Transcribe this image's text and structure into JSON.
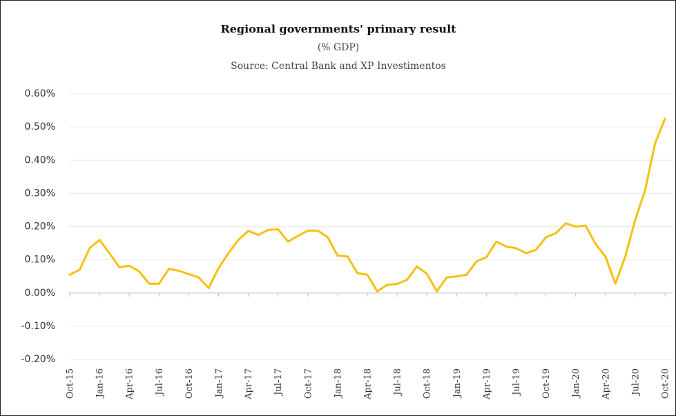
{
  "chart_data": {
    "type": "line",
    "title": "Regional governments' primary result",
    "subtitle": "(% GDP)",
    "source": "Source: Central Bank and XP Investimentos",
    "categories": [
      "Oct-15",
      null,
      null,
      "Jan-16",
      null,
      null,
      "Apr-16",
      null,
      null,
      "Jul-16",
      null,
      null,
      "Oct-16",
      null,
      null,
      "Jan-17",
      null,
      null,
      "Apr-17",
      null,
      null,
      "Jul-17",
      null,
      null,
      "Oct-17",
      null,
      null,
      "Jan-18",
      null,
      null,
      "Apr-18",
      null,
      null,
      "Jul-18",
      null,
      null,
      "Oct-18",
      null,
      null,
      "Jan-19",
      null,
      null,
      "Apr-19",
      null,
      null,
      "Jul-19",
      null,
      null,
      "Oct-19",
      null,
      null,
      "Jan-20",
      null,
      null,
      "Apr-20",
      null,
      null,
      "Jul-20",
      null,
      null,
      "Oct-20"
    ],
    "values": [
      0.055,
      0.07,
      0.135,
      0.16,
      0.12,
      0.078,
      0.082,
      0.065,
      0.028,
      0.028,
      0.073,
      0.067,
      0.057,
      0.047,
      0.015,
      0.075,
      0.12,
      0.16,
      0.187,
      0.175,
      0.19,
      0.192,
      0.155,
      0.172,
      0.188,
      0.188,
      0.168,
      0.113,
      0.11,
      0.06,
      0.055,
      0.005,
      0.025,
      0.027,
      0.04,
      0.08,
      0.058,
      0.005,
      0.047,
      0.05,
      0.055,
      0.095,
      0.108,
      0.155,
      0.14,
      0.135,
      0.12,
      0.13,
      0.168,
      0.18,
      0.21,
      0.2,
      0.203,
      0.148,
      0.11,
      0.028,
      0.11,
      0.22,
      0.31,
      0.45,
      0.525
    ],
    "color": "#f5c010",
    "ylim": [
      -0.2,
      0.6
    ],
    "yticks": [
      {
        "value": -0.2,
        "label": "-0.20%"
      },
      {
        "value": -0.1,
        "label": "-0.10%"
      },
      {
        "value": 0,
        "label": "0.00%"
      },
      {
        "value": 0.1,
        "label": "0.10%"
      },
      {
        "value": 0.2,
        "label": "0.20%"
      },
      {
        "value": 0.3,
        "label": "0.30%"
      },
      {
        "value": 0.4,
        "label": "0.40%"
      },
      {
        "value": 0.5,
        "label": "0.50%"
      },
      {
        "value": 0.6,
        "label": "0.60%"
      }
    ],
    "grid": true
  }
}
